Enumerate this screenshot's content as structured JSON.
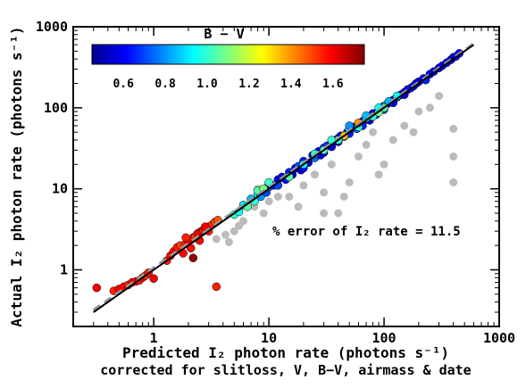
{
  "chart_data": {
    "type": "scatter",
    "title": "",
    "xlabel": "Predicted I₂ photon rate (photons s⁻¹)",
    "xlabel2": "corrected for slitloss, V, B−V, airmass & date",
    "ylabel": "Actual I₂ photon rate (photons s⁻¹)",
    "xscale": "log",
    "yscale": "log",
    "xlim": [
      0.2,
      1000
    ],
    "ylim": [
      0.2,
      1000
    ],
    "xticks": [
      "1",
      "10",
      "100",
      "1000"
    ],
    "yticks": [
      "1",
      "10",
      "100",
      "1000"
    ],
    "annotation": "% error of I₂ rate = 11.5",
    "colorbar": {
      "label": "B − V",
      "range": [
        0.45,
        1.75
      ],
      "ticks": [
        "0.6",
        "0.8",
        "1.0",
        "1.2",
        "1.4",
        "1.6"
      ],
      "placement": "top-left",
      "colormap": "jet"
    },
    "fit_line": {
      "x": [
        0.3,
        600
      ],
      "y": [
        0.3,
        600
      ],
      "color": "#000000",
      "style": "solid"
    },
    "one_to_one_line": {
      "x": [
        0.3,
        600
      ],
      "y": [
        0.32,
        620
      ],
      "color": "#999999",
      "style": "dashed"
    },
    "series": [
      {
        "color": "#bbbbbb",
        "points": [
          [
            3.5,
            2.4
          ],
          [
            4.2,
            2.7
          ],
          [
            5.0,
            3.0
          ],
          [
            4.5,
            2.2
          ],
          [
            6,
            4
          ],
          [
            7.5,
            6
          ],
          [
            8.5,
            8
          ],
          [
            9,
            5
          ],
          [
            10,
            7
          ],
          [
            12,
            8
          ],
          [
            15,
            8
          ],
          [
            18,
            6
          ],
          [
            20,
            11
          ],
          [
            25,
            15
          ],
          [
            30,
            5
          ],
          [
            30,
            9
          ],
          [
            35,
            20
          ],
          [
            40,
            5
          ],
          [
            45,
            8
          ],
          [
            50,
            12
          ],
          [
            60,
            25
          ],
          [
            70,
            35
          ],
          [
            80,
            50
          ],
          [
            90,
            15
          ],
          [
            100,
            20
          ],
          [
            120,
            40
          ],
          [
            150,
            60
          ],
          [
            180,
            50
          ],
          [
            200,
            90
          ],
          [
            250,
            100
          ],
          [
            300,
            140
          ],
          [
            400,
            55
          ],
          [
            400,
            25
          ],
          [
            400,
            12
          ],
          [
            8,
            10
          ],
          [
            5.5,
            3.5
          ]
        ]
      },
      {
        "color_by": "bv",
        "points": [
          [
            0.32,
            0.6,
            1.6
          ],
          [
            0.45,
            0.55,
            1.55
          ],
          [
            0.5,
            0.58,
            1.6
          ],
          [
            0.55,
            0.62,
            1.58
          ],
          [
            0.6,
            0.65,
            1.55
          ],
          [
            0.65,
            0.7,
            1.6
          ],
          [
            0.7,
            0.72,
            1.57
          ],
          [
            0.75,
            0.74,
            1.55
          ],
          [
            0.8,
            0.8,
            1.58
          ],
          [
            0.85,
            0.85,
            1.52
          ],
          [
            0.9,
            0.92,
            1.55
          ],
          [
            1.0,
            0.78,
            1.6
          ],
          [
            1.3,
            1.3,
            1.55
          ],
          [
            1.4,
            1.5,
            1.58
          ],
          [
            1.5,
            1.7,
            1.6
          ],
          [
            1.6,
            1.9,
            1.55
          ],
          [
            1.7,
            2.0,
            1.52
          ],
          [
            1.8,
            1.6,
            1.58
          ],
          [
            1.9,
            2.1,
            1.55
          ],
          [
            2.0,
            2.3,
            1.6
          ],
          [
            2.1,
            1.85,
            1.57
          ],
          [
            2.2,
            2.5,
            1.55
          ],
          [
            2.3,
            2.6,
            1.52
          ],
          [
            2.4,
            2.8,
            1.58
          ],
          [
            2.5,
            2.9,
            1.55
          ],
          [
            2.6,
            3.0,
            1.6
          ],
          [
            2.7,
            3.1,
            1.55
          ],
          [
            2.8,
            3.2,
            1.5
          ],
          [
            3.0,
            3.4,
            1.55
          ],
          [
            3.2,
            3.6,
            1.52
          ],
          [
            3.4,
            3.9,
            1.5
          ],
          [
            3.6,
            4.1,
            1.48
          ],
          [
            2.2,
            1.4,
            1.72
          ],
          [
            3.5,
            0.62,
            1.55
          ],
          [
            1.9,
            2.5,
            1.55
          ],
          [
            2.5,
            2.3,
            1.58
          ],
          [
            3.0,
            3.0,
            1.55
          ],
          [
            2.8,
            3.4,
            1.6
          ]
        ]
      },
      {
        "color_by": "bv",
        "points": [
          [
            5,
            4.8,
            1.0
          ],
          [
            5.5,
            5.2,
            0.95
          ],
          [
            6,
            6.3,
            0.9
          ],
          [
            6.5,
            6.0,
            1.05
          ],
          [
            7,
            7.5,
            0.85
          ],
          [
            7.5,
            7.0,
            1.0
          ],
          [
            8,
            8.5,
            0.9
          ],
          [
            8.5,
            8.0,
            0.8
          ],
          [
            9,
            9.5,
            0.95
          ],
          [
            9.5,
            9.0,
            0.7
          ],
          [
            10,
            10.5,
            0.75
          ],
          [
            10,
            11.5,
            0.6
          ],
          [
            11,
            11.0,
            0.65
          ],
          [
            12,
            13.0,
            0.6
          ],
          [
            12,
            11.0,
            0.7
          ],
          [
            13,
            14.0,
            0.55
          ],
          [
            14,
            13.0,
            0.6
          ],
          [
            15,
            16.0,
            0.65
          ],
          [
            16,
            15.0,
            0.55
          ],
          [
            17,
            18.0,
            0.6
          ],
          [
            18,
            19.0,
            0.7
          ],
          [
            19,
            17.0,
            0.55
          ],
          [
            20,
            22.0,
            0.65
          ],
          [
            20,
            18.0,
            0.6
          ],
          [
            22,
            21.0,
            0.55
          ],
          [
            24,
            26.0,
            0.6
          ],
          [
            25,
            24.0,
            0.75
          ],
          [
            27,
            29.0,
            0.62
          ],
          [
            28,
            26.0,
            0.58
          ],
          [
            30,
            32.0,
            0.65
          ],
          [
            30,
            28.0,
            0.55
          ],
          [
            32,
            34.0,
            0.68
          ],
          [
            35,
            36.0,
            0.6
          ],
          [
            35,
            33.0,
            0.57
          ],
          [
            38,
            40.0,
            0.62
          ],
          [
            40,
            42.0,
            0.65
          ],
          [
            40,
            38.0,
            0.55
          ],
          [
            42,
            45.0,
            0.6
          ],
          [
            45,
            44.0,
            0.7
          ],
          [
            48,
            50.0,
            0.62
          ],
          [
            50,
            52.0,
            0.58
          ],
          [
            50,
            48.0,
            0.65
          ],
          [
            55,
            58.0,
            0.6
          ],
          [
            58,
            55.0,
            0.72
          ],
          [
            60,
            62.0,
            0.62
          ],
          [
            65,
            68.0,
            0.58
          ],
          [
            65,
            60.0,
            0.65
          ],
          [
            70,
            72.0,
            0.6
          ],
          [
            75,
            78.0,
            0.62
          ],
          [
            75,
            70.0,
            0.55
          ],
          [
            80,
            85.0,
            0.6
          ],
          [
            85,
            82.0,
            0.65
          ],
          [
            90,
            95.0,
            0.62
          ],
          [
            95,
            98.0,
            0.58
          ],
          [
            100,
            105.0,
            0.6
          ],
          [
            100,
            95.0,
            0.7
          ],
          [
            105,
            110.0,
            0.9
          ],
          [
            110,
            115.0,
            0.6
          ],
          [
            120,
            125.0,
            0.62
          ],
          [
            120,
            115.0,
            0.58
          ],
          [
            130,
            135.0,
            0.65
          ],
          [
            140,
            145.0,
            0.6
          ],
          [
            150,
            155.0,
            0.62
          ],
          [
            150,
            145.0,
            0.58
          ],
          [
            160,
            168.0,
            0.6
          ],
          [
            170,
            175.0,
            0.65
          ],
          [
            180,
            185.0,
            0.6
          ],
          [
            190,
            200.0,
            0.62
          ],
          [
            200,
            210.0,
            0.58
          ],
          [
            220,
            230.0,
            0.6
          ],
          [
            230,
            220.0,
            0.65
          ],
          [
            250,
            260.0,
            0.6
          ],
          [
            270,
            280.0,
            0.62
          ],
          [
            300,
            310.0,
            0.58
          ],
          [
            320,
            330.0,
            0.6
          ],
          [
            350,
            360.0,
            0.62
          ],
          [
            380,
            390.0,
            0.6
          ],
          [
            400,
            420.0,
            0.58
          ],
          [
            420,
            430.0,
            0.62
          ],
          [
            450,
            470.0,
            0.6
          ],
          [
            8,
            9.5,
            1.05
          ],
          [
            9,
            10.0,
            1.1
          ],
          [
            10,
            12.0,
            1.0
          ],
          [
            15,
            14.0,
            1.05
          ],
          [
            20,
            20.0,
            0.95
          ],
          [
            25,
            27.0,
            1.0
          ],
          [
            30,
            30.0,
            1.05
          ],
          [
            40,
            40.0,
            1.0
          ],
          [
            50,
            55.0,
            0.95
          ],
          [
            60,
            58.0,
            1.0
          ],
          [
            70,
            75.0,
            1.05
          ],
          [
            80,
            78.0,
            1.0
          ],
          [
            90,
            88.0,
            1.1
          ],
          [
            100,
            100.0,
            1.05
          ],
          [
            45,
            45.0,
            1.35
          ],
          [
            60,
            65.0,
            1.4
          ],
          [
            35,
            40.0,
            1.0
          ],
          [
            50,
            60.0,
            0.8
          ],
          [
            70,
            80.0,
            0.85
          ],
          [
            90,
            100.0,
            0.95
          ],
          [
            110,
            120.0,
            0.85
          ],
          [
            130,
            140.0,
            0.95
          ]
        ]
      }
    ]
  }
}
